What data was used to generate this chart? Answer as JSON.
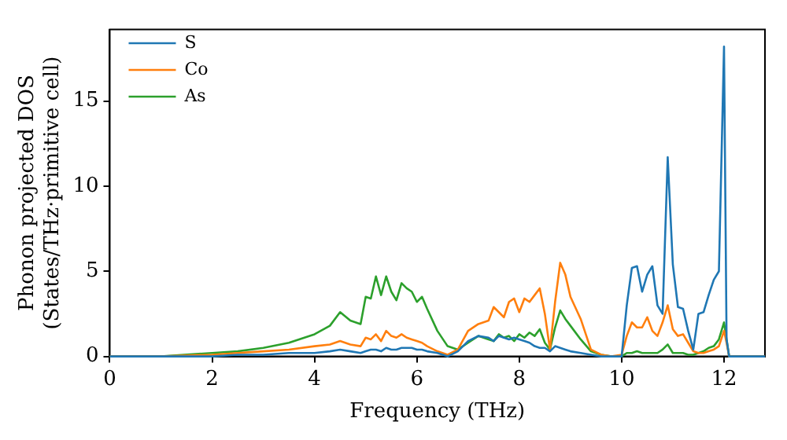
{
  "chart_data": {
    "type": "line",
    "xlabel": "Frequency (THz)",
    "ylabel": "Phonon projected DOS\n(States/THz·primitive cell)",
    "x": [
      0,
      1,
      2,
      2.5,
      3,
      3.5,
      4,
      4.3,
      4.5,
      4.7,
      4.9,
      5.0,
      5.1,
      5.2,
      5.3,
      5.4,
      5.5,
      5.6,
      5.7,
      5.8,
      5.9,
      6.0,
      6.1,
      6.2,
      6.4,
      6.6,
      6.8,
      7.0,
      7.2,
      7.4,
      7.5,
      7.6,
      7.7,
      7.8,
      7.9,
      8.0,
      8.1,
      8.2,
      8.3,
      8.4,
      8.5,
      8.6,
      8.7,
      8.8,
      8.9,
      9.0,
      9.2,
      9.4,
      9.6,
      9.8,
      10.0,
      10.1,
      10.2,
      10.3,
      10.4,
      10.5,
      10.6,
      10.7,
      10.8,
      10.9,
      11.0,
      11.1,
      11.2,
      11.3,
      11.4,
      11.5,
      11.6,
      11.7,
      11.8,
      11.9,
      12.0,
      12.05,
      12.1,
      12.8
    ],
    "series": [
      {
        "name": "S",
        "color": "#1f77b4",
        "values": [
          0,
          0,
          0,
          0.1,
          0.1,
          0.2,
          0.2,
          0.3,
          0.4,
          0.3,
          0.2,
          0.3,
          0.4,
          0.4,
          0.3,
          0.5,
          0.4,
          0.4,
          0.5,
          0.5,
          0.5,
          0.4,
          0.4,
          0.3,
          0.2,
          0,
          0.3,
          0.9,
          1.2,
          1.1,
          0.9,
          1.2,
          1.1,
          1.0,
          1.1,
          1.0,
          0.9,
          0.8,
          0.6,
          0.5,
          0.5,
          0.3,
          0.6,
          0.5,
          0.4,
          0.3,
          0.2,
          0.1,
          0,
          0,
          0,
          3.0,
          5.2,
          5.3,
          3.8,
          4.8,
          5.3,
          3.0,
          2.5,
          11.7,
          5.4,
          2.9,
          2.8,
          1.5,
          0.4,
          2.5,
          2.6,
          3.6,
          4.5,
          5.0,
          18.2,
          1.0,
          0,
          0
        ]
      },
      {
        "name": "Co",
        "color": "#ff7f0e",
        "values": [
          0,
          0,
          0.1,
          0.2,
          0.3,
          0.4,
          0.6,
          0.7,
          0.9,
          0.7,
          0.6,
          1.1,
          1.0,
          1.3,
          0.9,
          1.5,
          1.2,
          1.1,
          1.3,
          1.1,
          1.0,
          0.9,
          0.8,
          0.6,
          0.3,
          0.1,
          0.4,
          1.5,
          1.9,
          2.1,
          2.9,
          2.6,
          2.3,
          3.2,
          3.4,
          2.6,
          3.4,
          3.2,
          3.6,
          4.0,
          2.5,
          0.4,
          3.2,
          5.5,
          4.8,
          3.5,
          2.2,
          0.4,
          0.1,
          0,
          0.1,
          1.2,
          2.0,
          1.7,
          1.7,
          2.3,
          1.5,
          1.2,
          2.0,
          3.0,
          1.6,
          1.2,
          1.3,
          0.8,
          0.3,
          0.2,
          0.2,
          0.3,
          0.4,
          0.6,
          1.5,
          0.8,
          0,
          0
        ]
      },
      {
        "name": "As",
        "color": "#2ca02c",
        "values": [
          0,
          0,
          0.2,
          0.3,
          0.5,
          0.8,
          1.3,
          1.8,
          2.6,
          2.1,
          1.9,
          3.5,
          3.4,
          4.7,
          3.6,
          4.7,
          3.8,
          3.3,
          4.3,
          4.0,
          3.8,
          3.2,
          3.5,
          2.8,
          1.5,
          0.6,
          0.4,
          0.8,
          1.2,
          1.0,
          0.9,
          1.3,
          1.1,
          1.2,
          0.9,
          1.3,
          1.1,
          1.4,
          1.2,
          1.6,
          0.8,
          0.4,
          1.7,
          2.7,
          2.2,
          1.8,
          1.0,
          0.3,
          0.1,
          0,
          0,
          0.2,
          0.2,
          0.3,
          0.2,
          0.2,
          0.2,
          0.2,
          0.4,
          0.7,
          0.2,
          0.2,
          0.2,
          0.1,
          0.1,
          0.2,
          0.3,
          0.5,
          0.6,
          1.0,
          2.0,
          1.0,
          0,
          0
        ]
      }
    ],
    "xlim": [
      0,
      12.8
    ],
    "xticks": [
      0,
      2,
      4,
      6,
      8,
      10,
      12
    ],
    "ylim": [
      0,
      19.2
    ],
    "yticks": [
      0,
      5,
      10,
      15
    ],
    "grid": false,
    "legend": "top left",
    "marker": "none",
    "line_style": "solid"
  }
}
